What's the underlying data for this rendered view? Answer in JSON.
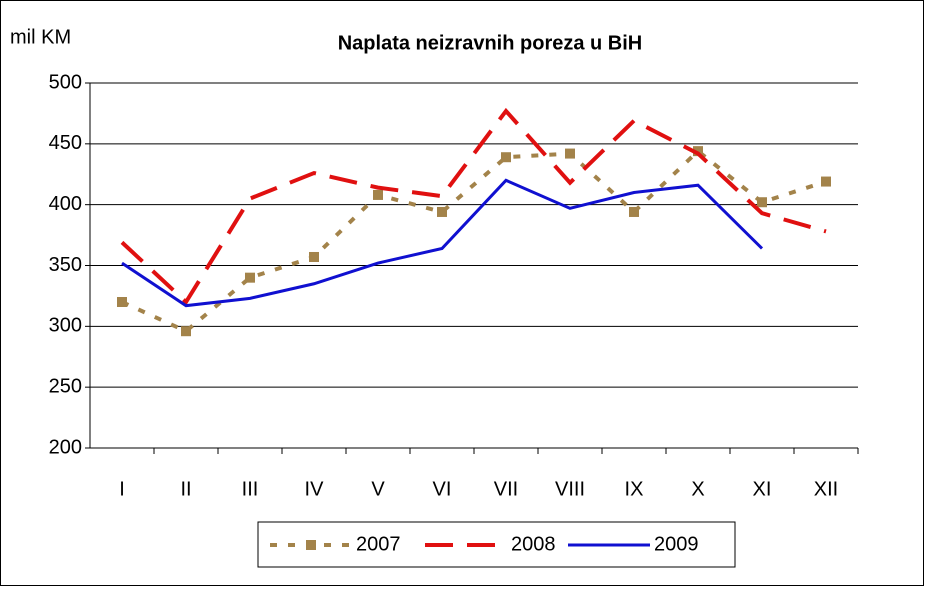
{
  "chart_data": {
    "type": "line",
    "title": "Naplata neizravnih poreza u BiH",
    "y_label": "mil KM",
    "categories": [
      "I",
      "II",
      "III",
      "IV",
      "V",
      "VI",
      "VII",
      "VIII",
      "IX",
      "X",
      "XI",
      "XII"
    ],
    "series": [
      {
        "name": "2007",
        "color": "#a3834a",
        "style": "dotted-square",
        "values": [
          320,
          296,
          340,
          357,
          408,
          394,
          439,
          442,
          394,
          444,
          402,
          419
        ]
      },
      {
        "name": "2008",
        "color": "#e01010",
        "style": "dashed",
        "values": [
          369,
          320,
          405,
          426,
          414,
          407,
          477,
          418,
          469,
          442,
          393,
          378
        ]
      },
      {
        "name": "2009",
        "color": "#1010d0",
        "style": "solid",
        "values": [
          352,
          317,
          323,
          335,
          352,
          364,
          420,
          397,
          410,
          416,
          364,
          null
        ]
      }
    ],
    "ylim": [
      200,
      500
    ],
    "yticks": [
      200,
      250,
      300,
      350,
      400,
      450,
      500
    ],
    "grid": true,
    "legend": "bottom"
  }
}
